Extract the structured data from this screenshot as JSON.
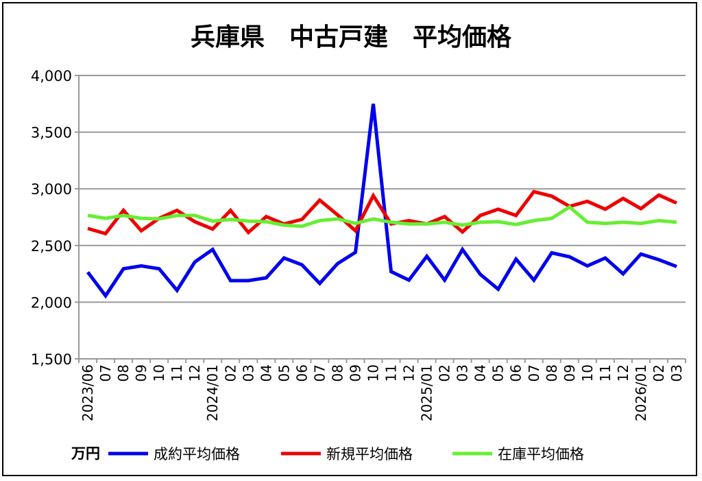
{
  "chart_data": {
    "type": "line",
    "title": "兵庫県　中古戸建　平均価格",
    "unit_label": "万円",
    "ylim": [
      1500,
      4000
    ],
    "yticks": [
      1500,
      2000,
      2500,
      3000,
      3500,
      4000
    ],
    "ytick_labels": [
      "1,500",
      "2,000",
      "2,500",
      "3,000",
      "3,500",
      "4,000"
    ],
    "grid": true,
    "legend_position": "bottom",
    "categories": [
      "2023/06",
      "07",
      "08",
      "09",
      "10",
      "11",
      "12",
      "2024/01",
      "02",
      "03",
      "04",
      "05",
      "06",
      "07",
      "08",
      "09",
      "10",
      "11",
      "12",
      "2025/01",
      "02",
      "03",
      "04",
      "05",
      "06",
      "07",
      "08",
      "09",
      "10",
      "11",
      "12",
      "2026/01",
      "02",
      "03"
    ],
    "series": [
      {
        "name": "成約平均価格",
        "color": "#0000ee",
        "values": [
          2265,
          2057,
          2295,
          2320,
          2295,
          2105,
          2355,
          2465,
          2190,
          2190,
          2215,
          2390,
          2330,
          2165,
          2340,
          2440,
          3750,
          2270,
          2195,
          2405,
          2195,
          2465,
          2245,
          2115,
          2380,
          2195,
          2435,
          2400,
          2320,
          2390,
          2250,
          2425,
          2375,
          2315
        ]
      },
      {
        "name": "新規平均価格",
        "color": "#ee0000",
        "values": [
          2650,
          2605,
          2810,
          2630,
          2740,
          2810,
          2710,
          2645,
          2810,
          2615,
          2755,
          2690,
          2730,
          2900,
          2770,
          2630,
          2940,
          2690,
          2720,
          2690,
          2755,
          2620,
          2765,
          2820,
          2765,
          2975,
          2935,
          2845,
          2890,
          2820,
          2915,
          2825,
          2945,
          2875
        ]
      },
      {
        "name": "在庫平均価格",
        "color": "#66ee33",
        "values": [
          2765,
          2740,
          2765,
          2740,
          2735,
          2765,
          2765,
          2715,
          2730,
          2715,
          2710,
          2680,
          2670,
          2720,
          2735,
          2695,
          2735,
          2705,
          2690,
          2690,
          2705,
          2680,
          2705,
          2710,
          2685,
          2720,
          2740,
          2840,
          2705,
          2695,
          2705,
          2695,
          2720,
          2705
        ]
      }
    ]
  }
}
